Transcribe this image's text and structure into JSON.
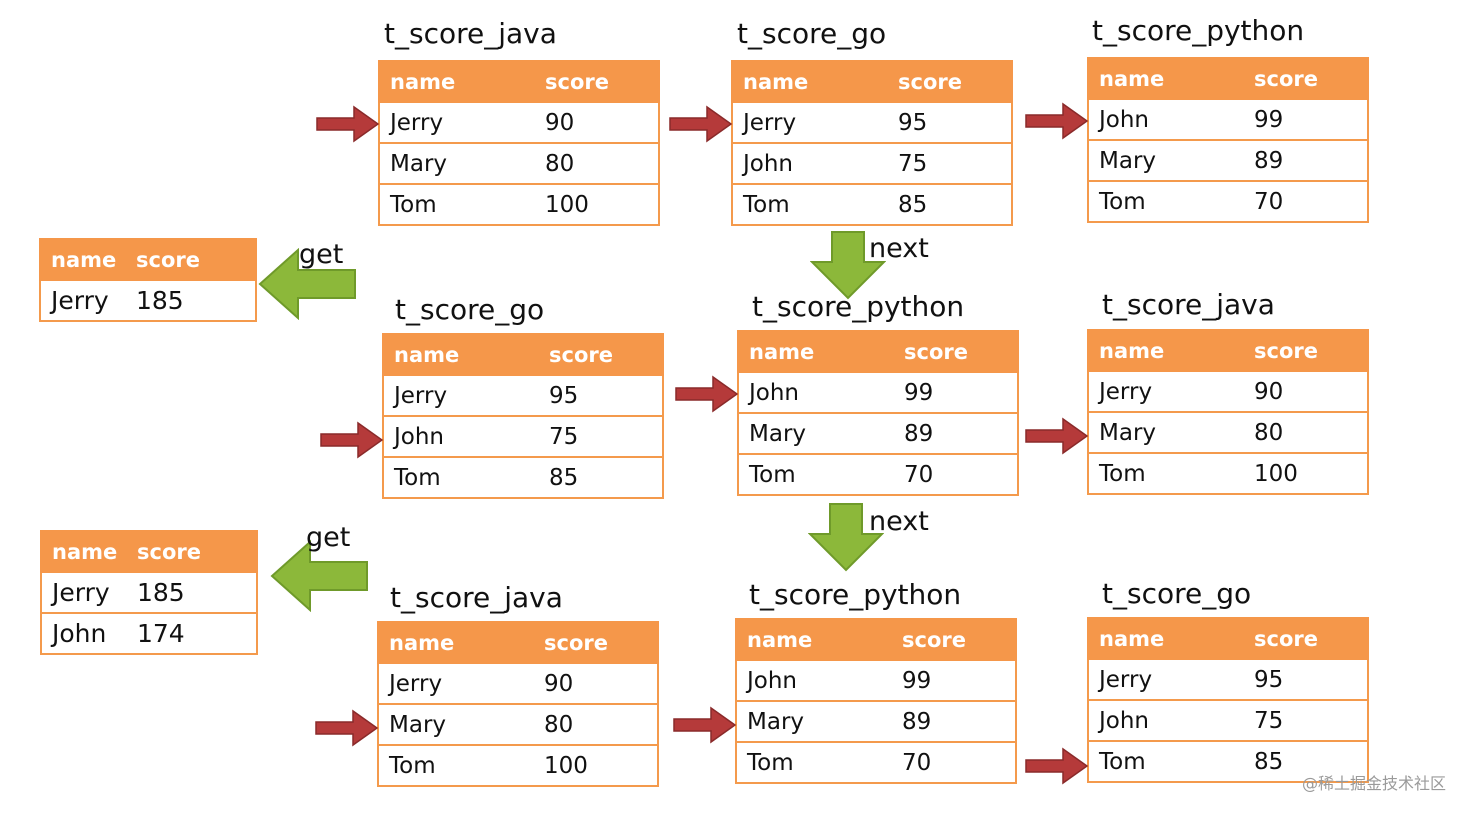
{
  "colors": {
    "accent": "#f5974a",
    "pointer": "#b53a3a",
    "flow_arrow": "#8cb83a"
  },
  "header": {
    "name": "name",
    "score": "score"
  },
  "tables": [
    {
      "title": "t_score_java",
      "rows": [
        [
          "Jerry",
          "90"
        ],
        [
          "Mary",
          "80"
        ],
        [
          "Tom",
          "100"
        ]
      ],
      "pointer_row": 0
    },
    {
      "title": "t_score_go",
      "rows": [
        [
          "Jerry",
          "95"
        ],
        [
          "John",
          "75"
        ],
        [
          "Tom",
          "85"
        ]
      ],
      "pointer_row": 0
    },
    {
      "title": "t_score_python",
      "rows": [
        [
          "John",
          "99"
        ],
        [
          "Mary",
          "89"
        ],
        [
          "Tom",
          "70"
        ]
      ],
      "pointer_row": 0
    },
    {
      "title": "t_score_go",
      "rows": [
        [
          "Jerry",
          "95"
        ],
        [
          "John",
          "75"
        ],
        [
          "Tom",
          "85"
        ]
      ],
      "pointer_row": 1
    },
    {
      "title": "t_score_python",
      "rows": [
        [
          "John",
          "99"
        ],
        [
          "Mary",
          "89"
        ],
        [
          "Tom",
          "70"
        ]
      ],
      "pointer_row": 0
    },
    {
      "title": "t_score_java",
      "rows": [
        [
          "Jerry",
          "90"
        ],
        [
          "Mary",
          "80"
        ],
        [
          "Tom",
          "100"
        ]
      ],
      "pointer_row": 1
    },
    {
      "title": "t_score_java",
      "rows": [
        [
          "Jerry",
          "90"
        ],
        [
          "Mary",
          "80"
        ],
        [
          "Tom",
          "100"
        ]
      ],
      "pointer_row": 1
    },
    {
      "title": "t_score_python",
      "rows": [
        [
          "John",
          "99"
        ],
        [
          "Mary",
          "89"
        ],
        [
          "Tom",
          "70"
        ]
      ],
      "pointer_row": 1
    },
    {
      "title": "t_score_go",
      "rows": [
        [
          "Jerry",
          "95"
        ],
        [
          "John",
          "75"
        ],
        [
          "Tom",
          "85"
        ]
      ],
      "pointer_row": 2
    }
  ],
  "results": [
    {
      "rows": [
        [
          "Jerry",
          "185"
        ]
      ]
    },
    {
      "rows": [
        [
          "Jerry",
          "185"
        ],
        [
          "John",
          "174"
        ]
      ]
    }
  ],
  "labels": {
    "get": "get",
    "next": "next"
  },
  "watermark": "@稀土掘金技术社区"
}
